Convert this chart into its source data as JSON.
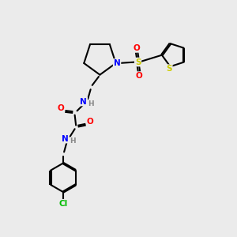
{
  "bg_color": "#ebebeb",
  "bond_color": "#000000",
  "atom_colors": {
    "N": "#0000ff",
    "O": "#ff0000",
    "S_sulfonyl": "#cccc00",
    "S_thio": "#cccc00",
    "Cl": "#00bb00",
    "H": "#888888",
    "C": "#000000"
  },
  "figsize": [
    3.0,
    3.0
  ],
  "dpi": 100
}
